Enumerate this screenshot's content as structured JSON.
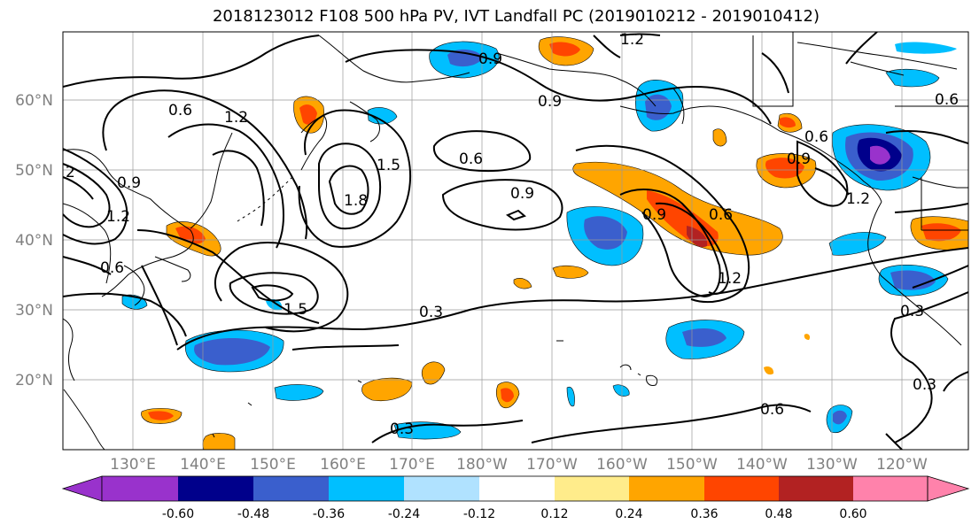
{
  "title": "2018123012 F108 500 hPa PV, IVT Landfall PC (2019010212 - 2019010412)",
  "lat_labels": [
    "60°N",
    "50°N",
    "40°N",
    "30°N",
    "20°N"
  ],
  "lon_labels": [
    "130°E",
    "140°E",
    "150°E",
    "160°E",
    "170°E",
    "180°W",
    "170°W",
    "160°W",
    "150°W",
    "140°W",
    "130°W",
    "120°W"
  ],
  "contour_labels": [
    "1.2",
    "0.9",
    "0.6",
    "1.2",
    "1.5",
    "1.8",
    "0.6",
    "0.9",
    "2",
    "0.9",
    "0.6",
    "0.9",
    "0.6",
    "0.9",
    "0.6",
    "1.2",
    "1.5",
    "1.2",
    "0.3",
    "0.3",
    "0.6",
    "0.3",
    "0.3",
    "0.9",
    "1.2",
    "0.6"
  ],
  "colorbar": {
    "ticks": [
      "-0.60",
      "-0.48",
      "-0.36",
      "-0.24",
      "-0.12",
      "0.12",
      "0.24",
      "0.36",
      "0.48",
      "0.60"
    ],
    "colors": [
      "#9932cc",
      "#00008b",
      "#3a5fcd",
      "#00bfff",
      "#b0e2ff",
      "#ffffff",
      "#ffec8b",
      "#ffa500",
      "#ff4500",
      "#b22222",
      "#ff82ab"
    ]
  }
}
